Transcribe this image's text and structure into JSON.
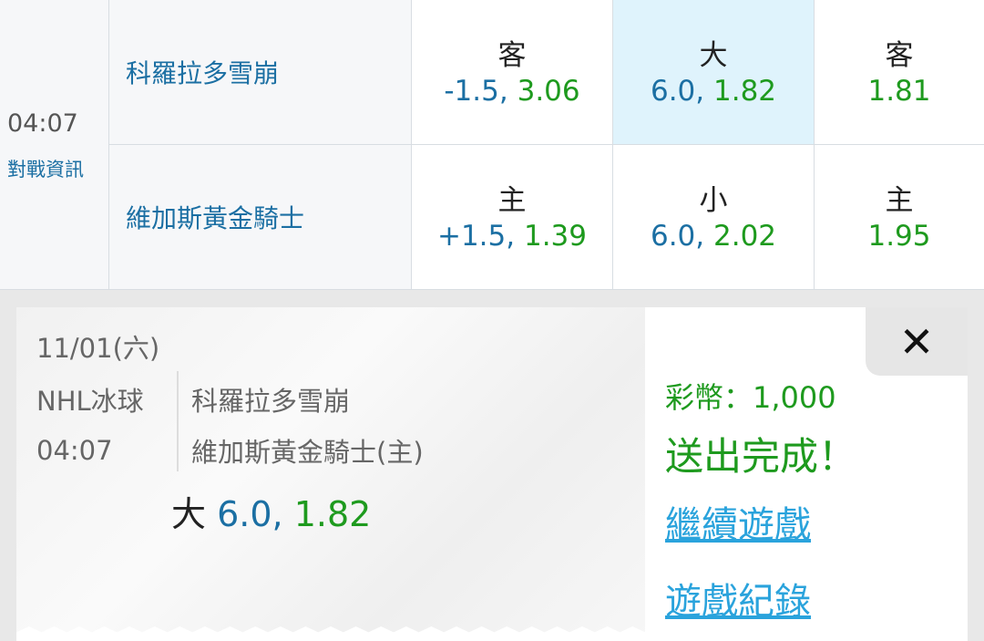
{
  "match": {
    "time": "04:07",
    "info_link": "對戰資訊",
    "rows": [
      {
        "team": "科羅拉多雪崩",
        "handicap": {
          "label": "客",
          "line": "-1.5",
          "odds": "3.06"
        },
        "total": {
          "label": "大",
          "line": "6.0",
          "odds": "1.82"
        },
        "moneyline": {
          "label": "客",
          "odds": "1.81"
        }
      },
      {
        "team": "維加斯黃金騎士",
        "handicap": {
          "label": "主",
          "line": "+1.5",
          "odds": "1.39"
        },
        "total": {
          "label": "小",
          "line": "6.0",
          "odds": "2.02"
        },
        "moneyline": {
          "label": "主",
          "odds": "1.95"
        }
      }
    ]
  },
  "receipt": {
    "date": "11/01(六)",
    "league": "NHL冰球",
    "time": "04:07",
    "away": "科羅拉多雪崩",
    "home": "維加斯黃金騎士(主)",
    "pick": {
      "label": "大",
      "line": "6.0,",
      "odds": "1.82"
    },
    "stake": "彩幣：1,000",
    "status": "送出完成！",
    "continue_link": "繼續遊戲",
    "history_link": "遊戲紀錄",
    "close_icon": "close-icon"
  },
  "colors": {
    "blue": "#1b6fa3",
    "green": "#1e9a1e",
    "highlight": "#dff3fc",
    "link": "#2aa3dc"
  }
}
